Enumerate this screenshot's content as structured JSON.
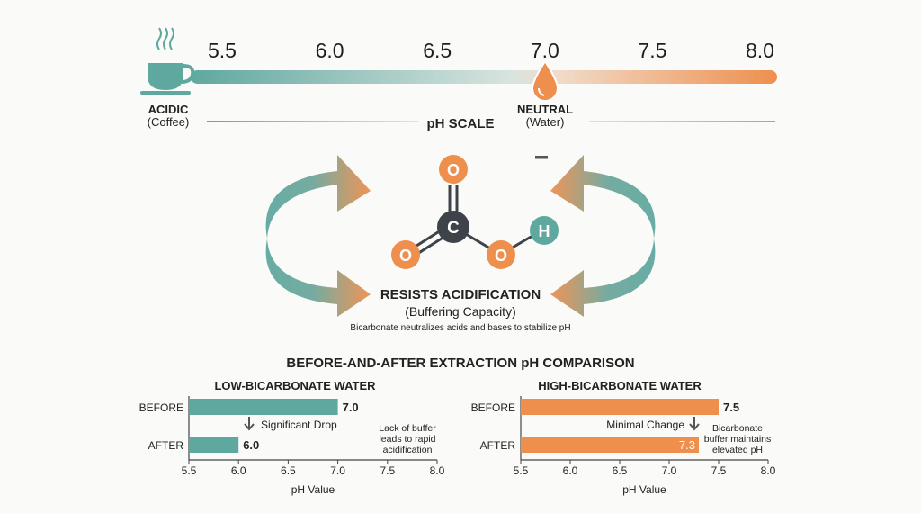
{
  "colors": {
    "teal": "#5fa8a0",
    "orange": "#ee8f4e",
    "dark": "#3d4348",
    "background": "#fafaf8"
  },
  "ph_scale": {
    "ticks": [
      "5.5",
      "6.0",
      "6.5",
      "7.0",
      "7.5",
      "8.0"
    ],
    "title": "pH SCALE",
    "acidic_label": "ACIDIC",
    "acidic_sub": "(Coffee)",
    "neutral_label": "NEUTRAL",
    "neutral_sub": "(Water)",
    "icons": [
      "coffee-cup-icon",
      "water-drop-icon"
    ]
  },
  "molecule": {
    "atoms": {
      "top_o": "O",
      "carbon": "C",
      "left_o": "O",
      "right_o": "O",
      "hydrogen": "H"
    }
  },
  "buffer": {
    "title": "RESISTS ACIDIFICATION",
    "subtitle": "(Buffering Capacity)",
    "description": "Bicarbonate neutralizes acids and bases to stabilize pH"
  },
  "comparison": {
    "title": "BEFORE-AND-AFTER EXTRACTION pH COMPARISON"
  },
  "chart_data": [
    {
      "type": "bar",
      "orientation": "horizontal",
      "title": "LOW-BICARBONATE WATER",
      "categories": [
        "BEFORE",
        "AFTER"
      ],
      "values": [
        7.0,
        6.0
      ],
      "value_labels": [
        "7.0",
        "6.0"
      ],
      "xlabel": "pH Value",
      "xlim": [
        5.5,
        8.0
      ],
      "xticks": [
        "5.5",
        "6.0",
        "6.5",
        "7.0",
        "7.5",
        "8.0"
      ],
      "color": "#5fa8a0",
      "annotations": {
        "arrow_label": "Significant Drop",
        "note": [
          "Lack of buffer",
          "leads to rapid",
          "acidification"
        ]
      }
    },
    {
      "type": "bar",
      "orientation": "horizontal",
      "title": "HIGH-BICARBONATE WATER",
      "categories": [
        "BEFORE",
        "AFTER"
      ],
      "values": [
        7.5,
        7.3
      ],
      "value_labels": [
        "7.5",
        "7.3"
      ],
      "xlabel": "pH Value",
      "xlim": [
        5.5,
        8.0
      ],
      "xticks": [
        "5.5",
        "6.0",
        "6.5",
        "7.0",
        "7.5",
        "8.0"
      ],
      "color": "#ee8f4e",
      "annotations": {
        "arrow_label": "Minimal Change",
        "note": [
          "Bicarbonate",
          "buffer maintains",
          "elevated pH"
        ]
      }
    }
  ]
}
